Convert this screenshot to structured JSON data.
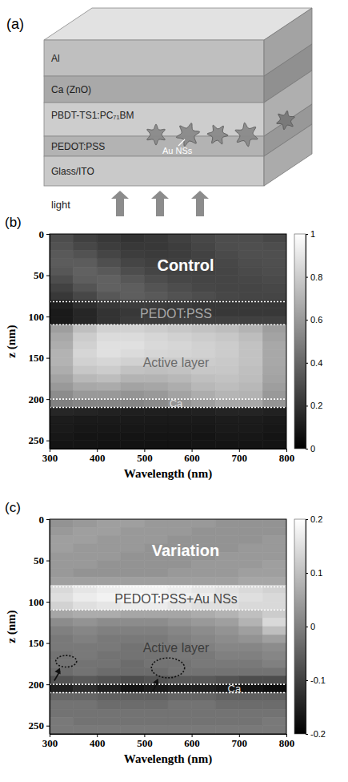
{
  "diagram": {
    "label": "(a)",
    "layers": [
      "Al",
      "Ca (ZnO)",
      "PBDT-TS1:PC₇₁BM",
      "PEDOT:PSS",
      "Glass/ITO"
    ],
    "particles_label": "Au NSs",
    "light_label": "light"
  },
  "chart_data": [
    {
      "type": "heatmap",
      "panel_label": "(b)",
      "title": "Control",
      "x_label": "Wavelength (nm)",
      "y_label": "z (nm)",
      "xlim": [
        300,
        800
      ],
      "xticks": [
        300,
        400,
        500,
        600,
        700,
        800
      ],
      "ylim": [
        0,
        260
      ],
      "yticks": [
        0,
        50,
        100,
        150,
        200,
        250
      ],
      "x_bins": [
        300,
        350,
        400,
        450,
        500,
        550,
        600,
        650,
        700,
        750,
        800
      ],
      "z_bins": [
        0,
        10,
        20,
        30,
        40,
        50,
        60,
        70,
        80,
        90,
        100,
        110,
        120,
        130,
        140,
        150,
        160,
        170,
        180,
        190,
        200,
        210,
        220,
        230,
        240,
        250,
        260
      ],
      "cells": [
        [
          0.3,
          0.25,
          0.22,
          0.2,
          0.22,
          0.25,
          0.28,
          0.3,
          0.3,
          0.28
        ],
        [
          0.32,
          0.28,
          0.24,
          0.22,
          0.22,
          0.24,
          0.27,
          0.3,
          0.31,
          0.3
        ],
        [
          0.35,
          0.32,
          0.27,
          0.24,
          0.23,
          0.24,
          0.26,
          0.29,
          0.31,
          0.31
        ],
        [
          0.36,
          0.36,
          0.31,
          0.27,
          0.25,
          0.25,
          0.26,
          0.28,
          0.3,
          0.31
        ],
        [
          0.34,
          0.38,
          0.35,
          0.3,
          0.27,
          0.26,
          0.26,
          0.27,
          0.29,
          0.3
        ],
        [
          0.3,
          0.37,
          0.38,
          0.34,
          0.3,
          0.28,
          0.27,
          0.27,
          0.28,
          0.29
        ],
        [
          0.26,
          0.33,
          0.38,
          0.37,
          0.33,
          0.3,
          0.28,
          0.27,
          0.27,
          0.28
        ],
        [
          0.22,
          0.28,
          0.34,
          0.37,
          0.35,
          0.32,
          0.3,
          0.28,
          0.27,
          0.27
        ],
        [
          0.12,
          0.18,
          0.22,
          0.24,
          0.24,
          0.23,
          0.22,
          0.22,
          0.22,
          0.22
        ],
        [
          0.1,
          0.15,
          0.2,
          0.22,
          0.22,
          0.22,
          0.22,
          0.22,
          0.22,
          0.22
        ],
        [
          0.1,
          0.15,
          0.2,
          0.23,
          0.24,
          0.25,
          0.25,
          0.25,
          0.25,
          0.25
        ],
        [
          0.62,
          0.75,
          0.82,
          0.82,
          0.8,
          0.78,
          0.76,
          0.74,
          0.7,
          0.62
        ],
        [
          0.66,
          0.8,
          0.86,
          0.86,
          0.84,
          0.82,
          0.8,
          0.78,
          0.74,
          0.64
        ],
        [
          0.68,
          0.82,
          0.88,
          0.88,
          0.85,
          0.84,
          0.82,
          0.8,
          0.76,
          0.66
        ],
        [
          0.7,
          0.84,
          0.88,
          0.86,
          0.84,
          0.83,
          0.82,
          0.8,
          0.76,
          0.66
        ],
        [
          0.7,
          0.82,
          0.84,
          0.82,
          0.8,
          0.8,
          0.8,
          0.79,
          0.76,
          0.66
        ],
        [
          0.68,
          0.78,
          0.8,
          0.76,
          0.75,
          0.76,
          0.78,
          0.78,
          0.75,
          0.65
        ],
        [
          0.64,
          0.72,
          0.74,
          0.7,
          0.7,
          0.72,
          0.75,
          0.76,
          0.74,
          0.64
        ],
        [
          0.6,
          0.66,
          0.67,
          0.64,
          0.65,
          0.68,
          0.72,
          0.74,
          0.72,
          0.62
        ],
        [
          0.55,
          0.6,
          0.6,
          0.58,
          0.6,
          0.64,
          0.68,
          0.71,
          0.7,
          0.6
        ],
        [
          0.5,
          0.52,
          0.52,
          0.52,
          0.54,
          0.58,
          0.62,
          0.66,
          0.66,
          0.58
        ],
        [
          0.15,
          0.14,
          0.13,
          0.12,
          0.12,
          0.12,
          0.13,
          0.14,
          0.14,
          0.13
        ],
        [
          0.11,
          0.1,
          0.1,
          0.1,
          0.1,
          0.1,
          0.1,
          0.11,
          0.11,
          0.1
        ],
        [
          0.1,
          0.09,
          0.09,
          0.09,
          0.09,
          0.09,
          0.09,
          0.1,
          0.1,
          0.09
        ],
        [
          0.09,
          0.08,
          0.08,
          0.08,
          0.08,
          0.08,
          0.08,
          0.09,
          0.09,
          0.08
        ],
        [
          0.08,
          0.08,
          0.07,
          0.07,
          0.07,
          0.07,
          0.08,
          0.08,
          0.08,
          0.08
        ]
      ],
      "color_range": [
        0,
        1
      ],
      "color_ticks": [
        0,
        0.2,
        0.4,
        0.6,
        0.8,
        1
      ],
      "layers": [
        {
          "label": "PEDOT:PSS",
          "z": [
            82,
            110
          ]
        },
        {
          "label": "Active layer",
          "z": [
            110,
            200
          ]
        },
        {
          "label": "Ca",
          "z": [
            200,
            210
          ]
        }
      ]
    },
    {
      "type": "heatmap",
      "panel_label": "(c)",
      "title": "Variation",
      "x_label": "Wavelength (nm)",
      "y_label": "z (nm)",
      "xlim": [
        300,
        800
      ],
      "xticks": [
        300,
        400,
        500,
        600,
        700,
        800
      ],
      "ylim": [
        0,
        260
      ],
      "yticks": [
        0,
        50,
        100,
        150,
        200,
        250
      ],
      "x_bins": [
        300,
        350,
        400,
        450,
        500,
        550,
        600,
        650,
        700,
        750,
        800
      ],
      "z_bins": [
        0,
        10,
        20,
        30,
        40,
        50,
        60,
        70,
        80,
        90,
        100,
        110,
        120,
        130,
        140,
        150,
        160,
        170,
        180,
        190,
        200,
        210,
        220,
        230,
        240,
        250,
        260
      ],
      "cells": [
        [
          0.03,
          0.04,
          0.05,
          0.05,
          0.04,
          0.04,
          0.04,
          0.03,
          0.03,
          0.03
        ],
        [
          0.04,
          0.05,
          0.05,
          0.04,
          0.04,
          0.04,
          0.03,
          0.03,
          0.03,
          0.03
        ],
        [
          0.05,
          0.05,
          0.04,
          0.04,
          0.04,
          0.03,
          0.03,
          0.03,
          0.03,
          0.04
        ],
        [
          0.05,
          0.04,
          0.04,
          0.04,
          0.03,
          0.03,
          0.03,
          0.03,
          0.04,
          0.04
        ],
        [
          0.04,
          0.04,
          0.04,
          0.03,
          0.03,
          0.03,
          0.03,
          0.04,
          0.04,
          0.04
        ],
        [
          0.04,
          0.04,
          0.03,
          0.03,
          0.03,
          0.03,
          0.04,
          0.04,
          0.04,
          0.05
        ],
        [
          0.04,
          0.03,
          0.03,
          0.03,
          0.03,
          0.04,
          0.04,
          0.04,
          0.05,
          0.05
        ],
        [
          0.05,
          0.05,
          0.05,
          0.05,
          0.05,
          0.05,
          0.05,
          0.05,
          0.06,
          0.06
        ],
        [
          0.14,
          0.16,
          0.17,
          0.18,
          0.18,
          0.17,
          0.16,
          0.15,
          0.14,
          0.13
        ],
        [
          0.15,
          0.17,
          0.18,
          0.19,
          0.19,
          0.18,
          0.17,
          0.16,
          0.15,
          0.14
        ],
        [
          0.13,
          0.15,
          0.16,
          0.17,
          0.17,
          0.16,
          0.15,
          0.15,
          0.14,
          0.14
        ],
        [
          0.06,
          0.07,
          0.07,
          0.06,
          0.06,
          0.06,
          0.07,
          0.08,
          0.1,
          0.12
        ],
        [
          0.02,
          0.03,
          0.02,
          0.02,
          0.02,
          0.03,
          0.04,
          0.05,
          0.08,
          0.14
        ],
        [
          0.0,
          0.01,
          0.0,
          0.0,
          0.0,
          0.01,
          0.02,
          0.03,
          0.05,
          0.1
        ],
        [
          -0.01,
          0.0,
          -0.01,
          -0.01,
          -0.01,
          0.0,
          0.01,
          0.02,
          0.03,
          0.05
        ],
        [
          -0.01,
          -0.01,
          -0.01,
          -0.02,
          -0.01,
          -0.01,
          0.0,
          0.01,
          0.01,
          0.02
        ],
        [
          -0.02,
          -0.01,
          -0.02,
          -0.02,
          -0.02,
          -0.01,
          -0.01,
          0.0,
          0.0,
          0.01
        ],
        [
          -0.02,
          -0.02,
          -0.02,
          -0.03,
          -0.02,
          -0.02,
          -0.01,
          -0.01,
          -0.01,
          0.0
        ],
        [
          -0.03,
          -0.02,
          -0.03,
          -0.03,
          -0.03,
          -0.02,
          -0.02,
          -0.02,
          -0.02,
          -0.02
        ],
        [
          -0.07,
          -0.06,
          -0.07,
          -0.08,
          -0.07,
          -0.06,
          -0.06,
          -0.07,
          -0.08,
          -0.08
        ],
        [
          -0.15,
          -0.13,
          -0.15,
          -0.17,
          -0.16,
          -0.15,
          -0.15,
          -0.16,
          -0.17,
          -0.18
        ],
        [
          -0.04,
          -0.04,
          -0.05,
          -0.05,
          -0.05,
          -0.04,
          -0.04,
          -0.05,
          -0.05,
          -0.05
        ],
        [
          -0.02,
          -0.02,
          -0.03,
          -0.03,
          -0.03,
          -0.02,
          -0.02,
          -0.03,
          -0.03,
          -0.03
        ],
        [
          -0.02,
          -0.02,
          -0.02,
          -0.02,
          -0.02,
          -0.02,
          -0.02,
          -0.02,
          -0.02,
          -0.02
        ],
        [
          -0.01,
          -0.02,
          -0.02,
          -0.02,
          -0.02,
          -0.02,
          -0.02,
          -0.02,
          -0.02,
          -0.01
        ],
        [
          -0.01,
          -0.01,
          -0.01,
          -0.01,
          -0.01,
          -0.01,
          -0.01,
          -0.01,
          -0.01,
          -0.01
        ]
      ],
      "color_range": [
        -0.2,
        0.2
      ],
      "color_ticks": [
        -0.2,
        -0.1,
        0,
        0.1,
        0.2
      ],
      "layers": [
        {
          "label": "PEDOT:PSS+Au NSs",
          "z": [
            82,
            110
          ]
        },
        {
          "label": "Active layer",
          "z": [
            110,
            200
          ]
        },
        {
          "label": "Ca",
          "z": [
            200,
            210
          ]
        }
      ],
      "highlights": [
        {
          "x": 335,
          "z": 172,
          "rx": 22,
          "rz": 7
        },
        {
          "x": 550,
          "z": 180,
          "rx": 35,
          "rz": 12
        }
      ]
    }
  ]
}
